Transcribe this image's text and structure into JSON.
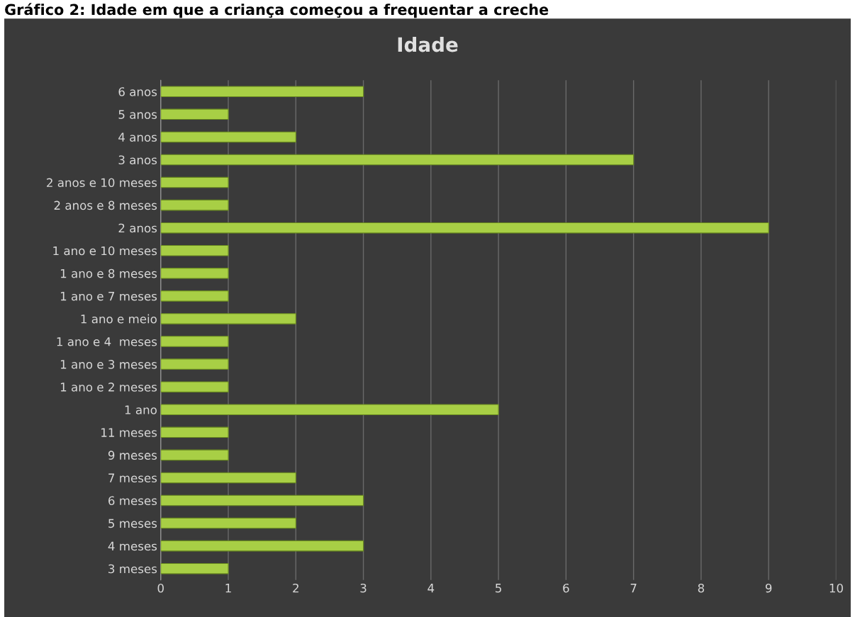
{
  "chart_data": {
    "type": "bar",
    "orientation": "horizontal",
    "title": "Gráfico 2: Idade em que a criança começou a frequentar a creche",
    "subtitle": "Idade",
    "categories": [
      "6 anos",
      "5 anos",
      "4 anos",
      "3 anos",
      "2 anos e 10 meses",
      "2 anos e 8 meses",
      "2 anos",
      "1 ano e 10 meses",
      "1 ano e 8 meses",
      "1 ano e 7 meses",
      "1 ano e meio",
      "1 ano e 4  meses",
      "1 ano e 3 meses",
      "1 ano e 2 meses",
      "1 ano",
      "11 meses",
      "9 meses",
      "7 meses",
      "6 meses",
      "5 meses",
      "4 meses",
      "3 meses"
    ],
    "values": [
      3,
      1,
      2,
      7,
      1,
      1,
      9,
      1,
      1,
      1,
      2,
      1,
      1,
      1,
      5,
      1,
      1,
      2,
      3,
      2,
      3,
      1
    ],
    "color": "#a8cf45",
    "xlim": [
      0,
      10
    ],
    "xticks": [
      0,
      1,
      2,
      3,
      4,
      5,
      6,
      7,
      8,
      9,
      10
    ],
    "grid": "x"
  }
}
